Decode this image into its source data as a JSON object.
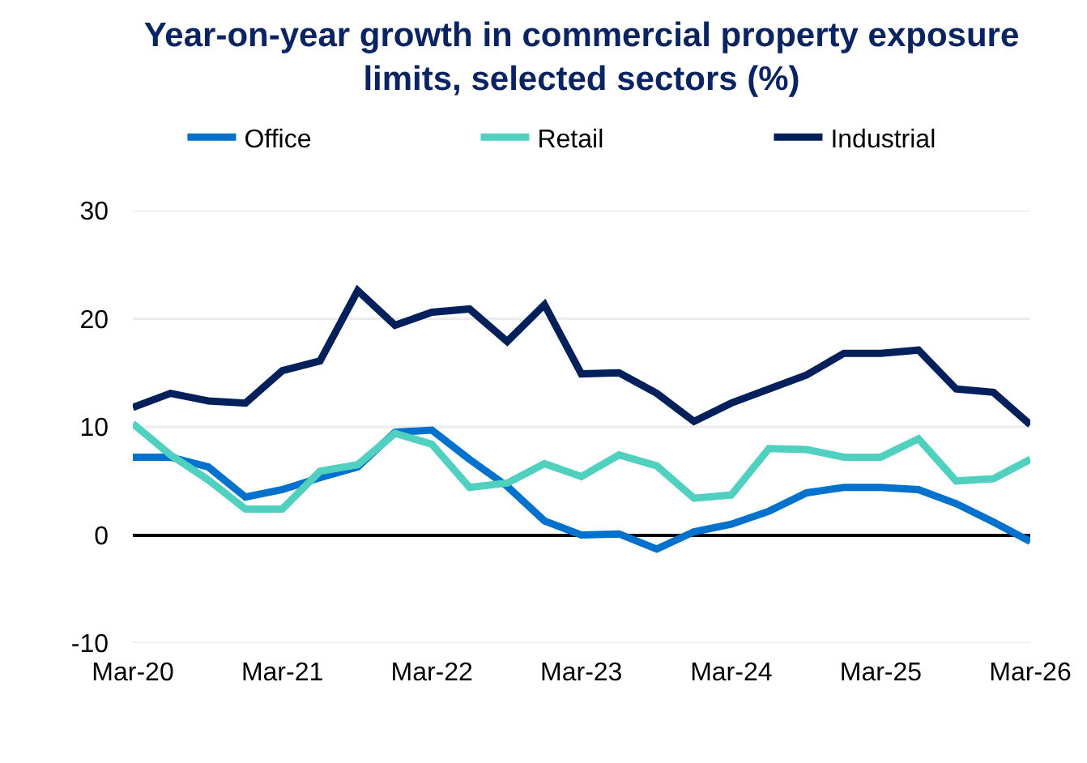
{
  "chart_data": {
    "type": "line",
    "title": "Year-on-year growth in commercial property exposure limits, selected sectors (%)",
    "x": [
      "2020-03",
      "2020-06",
      "2020-09",
      "2020-12",
      "2021-03",
      "2021-06",
      "2021-09",
      "2021-12",
      "2022-03",
      "2022-06",
      "2022-09",
      "2022-12",
      "2023-03",
      "2023-06",
      "2023-09",
      "2023-12",
      "2024-03",
      "2024-06",
      "2024-09",
      "2024-12",
      "2025-03",
      "2025-06",
      "2025-09",
      "2025-12",
      "2026-03"
    ],
    "series": [
      {
        "name": "Office",
        "color": "#0072ce",
        "values": [
          7.2,
          7.2,
          6.3,
          3.5,
          4.2,
          5.3,
          6.3,
          9.5,
          9.7,
          7.0,
          4.5,
          1.3,
          0.0,
          0.1,
          -1.3,
          0.3,
          1.0,
          2.2,
          3.9,
          4.4,
          4.4,
          4.2,
          2.9,
          1.2,
          -0.6
        ]
      },
      {
        "name": "Retail",
        "color": "#50d0be",
        "values": [
          10.3,
          7.4,
          5.1,
          2.4,
          2.4,
          5.9,
          6.5,
          9.4,
          8.4,
          4.4,
          4.8,
          6.6,
          5.4,
          7.4,
          6.4,
          3.4,
          3.7,
          8.0,
          7.9,
          7.2,
          7.2,
          8.9,
          5.0,
          5.2,
          7.0
        ]
      },
      {
        "name": "Industrial",
        "color": "#00205b",
        "values": [
          11.8,
          13.1,
          12.4,
          12.2,
          15.2,
          16.1,
          22.6,
          19.4,
          20.6,
          20.9,
          17.9,
          21.3,
          14.9,
          15.0,
          13.1,
          10.5,
          12.2,
          13.5,
          14.8,
          16.8,
          16.8,
          17.1,
          13.5,
          13.2,
          10.2
        ]
      }
    ],
    "xlim": [
      "2020-03",
      "2026-03"
    ],
    "xticks": [
      {
        "value": "2020-03",
        "label": "Mar-20"
      },
      {
        "value": "2021-03",
        "label": "Mar-21"
      },
      {
        "value": "2022-03",
        "label": "Mar-22"
      },
      {
        "value": "2023-03",
        "label": "Mar-23"
      },
      {
        "value": "2024-03",
        "label": "Mar-24"
      },
      {
        "value": "2025-03",
        "label": "Mar-25"
      },
      {
        "value": "2026-03",
        "label": "Mar-26"
      }
    ],
    "ylim": [
      -10,
      30
    ],
    "yticks": [
      -10,
      0,
      10,
      20,
      30
    ],
    "grid": "y",
    "legend": "top"
  }
}
